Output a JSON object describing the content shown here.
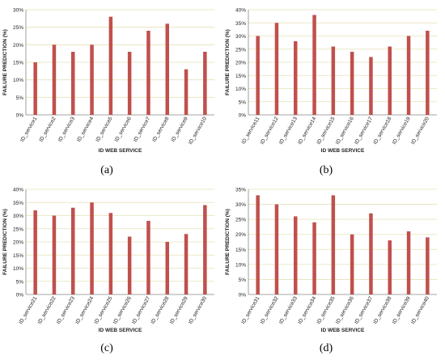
{
  "figure": {
    "captions": [
      "(a)",
      "(b)",
      "(c)",
      "(d)"
    ]
  },
  "colors": {
    "bar": "#c0504d",
    "grid": "#e6e0b8",
    "axis": "#888888",
    "text": "#222222"
  },
  "chart_data": [
    {
      "type": "bar",
      "title": "",
      "xlabel": "ID WEB SERVICE",
      "ylabel": "FAILURE PREDICTION (%)",
      "ylim": [
        0,
        30
      ],
      "ytick_step": 5,
      "grid": true,
      "categories": [
        "ID_service1",
        "ID_service2",
        "ID_service3",
        "ID_service4",
        "ID_service5",
        "ID_service6",
        "ID_service7",
        "ID_service8",
        "ID_service9",
        "ID_service10"
      ],
      "values": [
        15,
        20,
        18,
        20,
        28,
        18,
        24,
        26,
        13,
        18
      ]
    },
    {
      "type": "bar",
      "title": "",
      "xlabel": "ID WEB SERVICE",
      "ylabel": "FAILURE PREDICTION (%)",
      "ylim": [
        0,
        40
      ],
      "ytick_step": 5,
      "grid": true,
      "categories": [
        "ID_service11",
        "ID_service12",
        "ID_service13",
        "ID_service14",
        "ID_service15",
        "ID_service16",
        "ID_service17",
        "ID_service18",
        "ID_service19",
        "ID_service20"
      ],
      "values": [
        30,
        35,
        28,
        38,
        26,
        24,
        22,
        26,
        30,
        32
      ]
    },
    {
      "type": "bar",
      "title": "",
      "xlabel": "ID WEB SERVICE",
      "ylabel": "FAILURE PREDICTION (%)",
      "ylim": [
        0,
        40
      ],
      "ytick_step": 5,
      "grid": true,
      "categories": [
        "ID_service21",
        "ID_service22",
        "ID_service23",
        "ID_service24",
        "ID_service25",
        "ID_service26",
        "ID_service27",
        "ID_service28",
        "ID_service29",
        "ID_service30"
      ],
      "values": [
        32,
        30,
        33,
        35,
        31,
        22,
        28,
        20,
        23,
        34
      ]
    },
    {
      "type": "bar",
      "title": "",
      "xlabel": "ID WEB SERVICE",
      "ylabel": "FAILURE PREDICTION (%)",
      "ylim": [
        0,
        35
      ],
      "ytick_step": 5,
      "grid": true,
      "categories": [
        "ID_service31",
        "ID_service32",
        "ID_service33",
        "ID_service34",
        "ID_service35",
        "ID_service36",
        "ID_service37",
        "ID_service38",
        "ID_service39",
        "ID_service40"
      ],
      "values": [
        33,
        30,
        26,
        24,
        33,
        20,
        27,
        18,
        21,
        19
      ]
    }
  ]
}
